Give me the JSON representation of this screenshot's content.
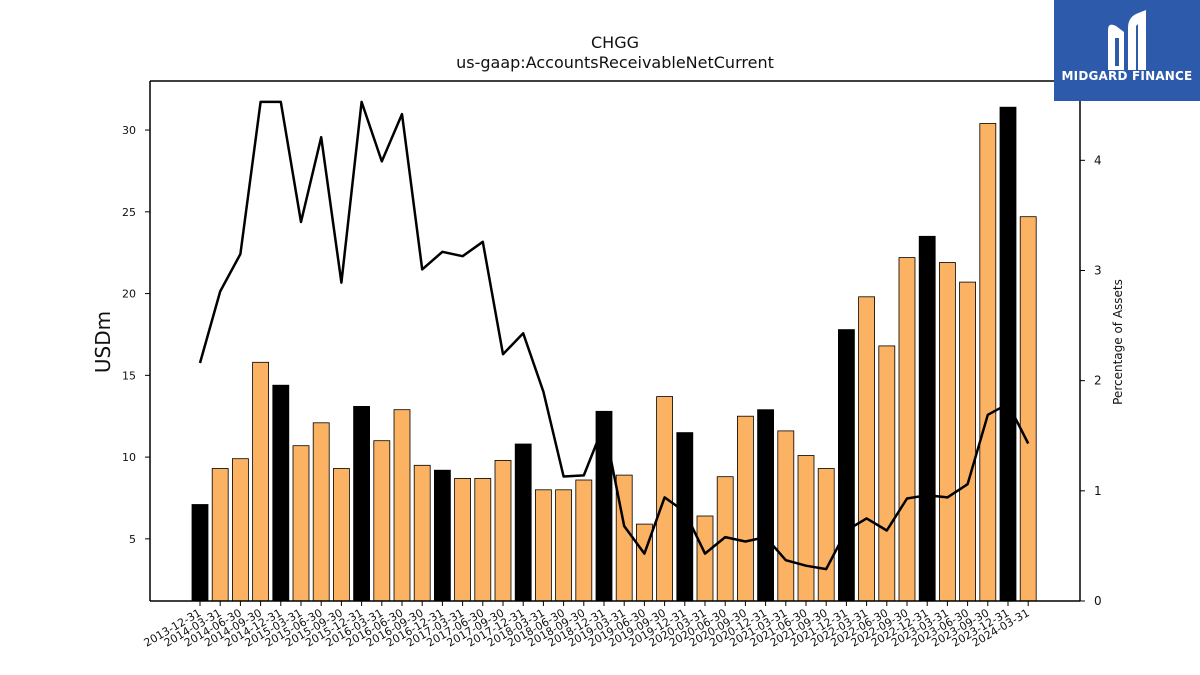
{
  "logo": {
    "text": "MIDGARD FINANCE",
    "icon": "midgard-logo-icon",
    "bg": "#2e5aac"
  },
  "chart_data": {
    "type": "bar",
    "title": "CHGG",
    "subtitle": "us-gaap:AccountsReceivableNetCurrent",
    "ylabel": "USDm",
    "y2label": "Percentage of Assets",
    "ylim": [
      1.2,
      33
    ],
    "y2lim": [
      0,
      4.72
    ],
    "yticks": [
      5,
      10,
      15,
      20,
      25,
      30
    ],
    "y2ticks": [
      0,
      1,
      2,
      3,
      4
    ],
    "colors": {
      "q4_bar": "#000000",
      "other_bar": "#fbb262",
      "line": "#000000"
    },
    "categories": [
      "2013-12-31",
      "2014-03-31",
      "2014-06-30",
      "2014-09-30",
      "2014-12-31",
      "2015-03-31",
      "2015-06-30",
      "2015-09-30",
      "2015-12-31",
      "2016-03-31",
      "2016-06-30",
      "2016-09-30",
      "2016-12-31",
      "2017-03-31",
      "2017-06-30",
      "2017-09-30",
      "2017-12-31",
      "2018-03-31",
      "2018-06-30",
      "2018-09-30",
      "2018-12-31",
      "2019-03-31",
      "2019-06-30",
      "2019-09-30",
      "2019-12-31",
      "2020-03-31",
      "2020-06-30",
      "2020-09-30",
      "2020-12-31",
      "2021-03-31",
      "2021-06-30",
      "2021-09-30",
      "2021-12-31",
      "2022-03-31",
      "2022-06-30",
      "2022-09-30",
      "2022-12-31",
      "2023-03-31",
      "2023-06-30",
      "2023-09-30",
      "2023-12-31",
      "2024-03-31"
    ],
    "series": [
      {
        "type": "bar",
        "axis": "left",
        "values": [
          7.1,
          9.3,
          9.9,
          15.8,
          14.4,
          10.7,
          12.1,
          9.3,
          13.1,
          11.0,
          12.9,
          9.5,
          9.2,
          8.7,
          8.7,
          9.8,
          10.8,
          8.0,
          8.0,
          8.6,
          12.8,
          8.9,
          5.9,
          13.7,
          11.5,
          6.4,
          8.8,
          12.5,
          12.9,
          11.6,
          10.1,
          9.3,
          17.8,
          19.8,
          16.8,
          22.2,
          23.5,
          21.9,
          20.7,
          30.4,
          31.4,
          24.7
        ]
      },
      {
        "type": "line",
        "axis": "right",
        "values": [
          2.16,
          2.81,
          3.15,
          4.53,
          4.53,
          3.44,
          4.21,
          2.89,
          4.53,
          3.99,
          4.42,
          3.01,
          3.17,
          3.13,
          3.26,
          2.24,
          2.43,
          1.9,
          1.13,
          1.14,
          1.6,
          0.68,
          0.43,
          0.94,
          0.81,
          0.43,
          0.58,
          0.54,
          0.58,
          0.37,
          0.32,
          0.29,
          0.64,
          0.75,
          0.64,
          0.93,
          0.96,
          0.94,
          1.06,
          1.69,
          1.79,
          1.43
        ]
      }
    ]
  }
}
